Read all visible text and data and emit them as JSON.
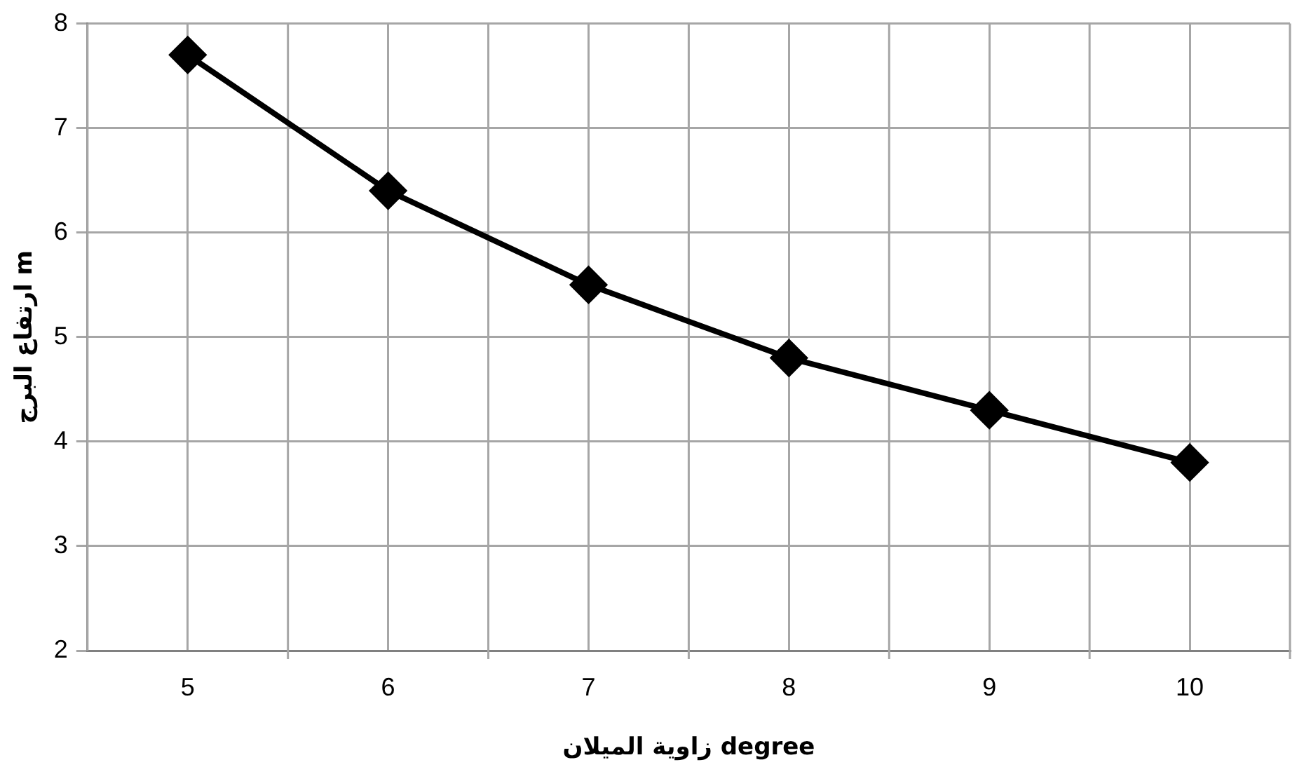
{
  "chart_data": {
    "type": "line",
    "xlabel": "زاوية الميلان degree",
    "ylabel": "ارتفاع البرج m",
    "categories": [
      "5",
      "6",
      "7",
      "8",
      "9",
      "10"
    ],
    "series": [
      {
        "color": "#000000",
        "values": [
          7.7,
          6.4,
          5.5,
          4.8,
          4.3,
          3.8
        ]
      }
    ],
    "ylim": [
      2,
      8
    ],
    "yticks": [
      2,
      3,
      4,
      5,
      6,
      7,
      8
    ],
    "grid": true,
    "legend": false,
    "marker": "diamond",
    "line_style": "solid"
  }
}
